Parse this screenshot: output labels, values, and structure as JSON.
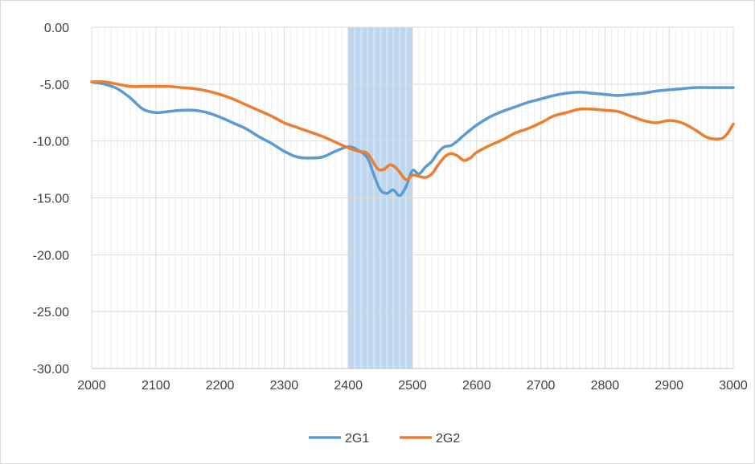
{
  "chart_data": {
    "type": "line",
    "title": "",
    "xlabel": "",
    "ylabel": "",
    "xlim": [
      2000,
      3000
    ],
    "ylim": [
      -30,
      0
    ],
    "x_ticks": [
      2000,
      2100,
      2200,
      2300,
      2400,
      2500,
      2600,
      2700,
      2800,
      2900,
      3000
    ],
    "x_tick_labels": [
      "2000",
      "2100",
      "2200",
      "2300",
      "2400",
      "2500",
      "2600",
      "2700",
      "2800",
      "2900",
      "3000"
    ],
    "y_ticks": [
      0,
      -5,
      -10,
      -15,
      -20,
      -25,
      -30
    ],
    "y_tick_labels": [
      "0.00",
      "-5.00",
      "-10.00",
      "-15.00",
      "-20.00",
      "-25.00",
      "-30.00"
    ],
    "grid": true,
    "legend_position": "bottom",
    "highlight_band": {
      "x_start": 2400,
      "x_end": 2500,
      "color": "#bdd7ee",
      "border": "#9dc3e6"
    },
    "series": [
      {
        "name": "2G1",
        "color": "#5b9bd5",
        "points": [
          [
            2000,
            -4.8
          ],
          [
            2020,
            -5.0
          ],
          [
            2040,
            -5.4
          ],
          [
            2060,
            -6.2
          ],
          [
            2080,
            -7.2
          ],
          [
            2100,
            -7.5
          ],
          [
            2120,
            -7.4
          ],
          [
            2140,
            -7.3
          ],
          [
            2160,
            -7.3
          ],
          [
            2180,
            -7.5
          ],
          [
            2200,
            -7.9
          ],
          [
            2220,
            -8.4
          ],
          [
            2240,
            -8.9
          ],
          [
            2260,
            -9.6
          ],
          [
            2280,
            -10.2
          ],
          [
            2300,
            -10.9
          ],
          [
            2320,
            -11.4
          ],
          [
            2340,
            -11.5
          ],
          [
            2360,
            -11.4
          ],
          [
            2380,
            -10.9
          ],
          [
            2400,
            -10.5
          ],
          [
            2415,
            -10.8
          ],
          [
            2430,
            -11.5
          ],
          [
            2440,
            -13.0
          ],
          [
            2450,
            -14.3
          ],
          [
            2460,
            -14.6
          ],
          [
            2470,
            -14.3
          ],
          [
            2480,
            -14.8
          ],
          [
            2490,
            -14.0
          ],
          [
            2500,
            -12.6
          ],
          [
            2510,
            -12.9
          ],
          [
            2520,
            -12.3
          ],
          [
            2530,
            -11.8
          ],
          [
            2540,
            -11.0
          ],
          [
            2550,
            -10.5
          ],
          [
            2560,
            -10.4
          ],
          [
            2570,
            -10.0
          ],
          [
            2580,
            -9.5
          ],
          [
            2600,
            -8.6
          ],
          [
            2620,
            -7.9
          ],
          [
            2640,
            -7.4
          ],
          [
            2660,
            -7.0
          ],
          [
            2680,
            -6.6
          ],
          [
            2700,
            -6.3
          ],
          [
            2720,
            -6.0
          ],
          [
            2740,
            -5.8
          ],
          [
            2760,
            -5.7
          ],
          [
            2780,
            -5.8
          ],
          [
            2800,
            -5.9
          ],
          [
            2820,
            -6.0
          ],
          [
            2840,
            -5.9
          ],
          [
            2860,
            -5.8
          ],
          [
            2880,
            -5.6
          ],
          [
            2900,
            -5.5
          ],
          [
            2920,
            -5.4
          ],
          [
            2940,
            -5.3
          ],
          [
            2960,
            -5.3
          ],
          [
            2980,
            -5.3
          ],
          [
            3000,
            -5.3
          ]
        ]
      },
      {
        "name": "2G2",
        "color": "#ed7d31",
        "points": [
          [
            2000,
            -4.8
          ],
          [
            2020,
            -4.8
          ],
          [
            2040,
            -5.0
          ],
          [
            2060,
            -5.2
          ],
          [
            2080,
            -5.2
          ],
          [
            2100,
            -5.2
          ],
          [
            2120,
            -5.2
          ],
          [
            2140,
            -5.3
          ],
          [
            2160,
            -5.4
          ],
          [
            2180,
            -5.6
          ],
          [
            2200,
            -5.9
          ],
          [
            2220,
            -6.3
          ],
          [
            2240,
            -6.8
          ],
          [
            2260,
            -7.3
          ],
          [
            2280,
            -7.8
          ],
          [
            2300,
            -8.4
          ],
          [
            2320,
            -8.8
          ],
          [
            2340,
            -9.2
          ],
          [
            2360,
            -9.6
          ],
          [
            2380,
            -10.1
          ],
          [
            2400,
            -10.6
          ],
          [
            2415,
            -10.9
          ],
          [
            2430,
            -11.1
          ],
          [
            2445,
            -12.4
          ],
          [
            2455,
            -12.5
          ],
          [
            2465,
            -12.1
          ],
          [
            2475,
            -12.4
          ],
          [
            2490,
            -13.4
          ],
          [
            2500,
            -13.0
          ],
          [
            2510,
            -13.1
          ],
          [
            2520,
            -13.2
          ],
          [
            2530,
            -12.9
          ],
          [
            2540,
            -12.1
          ],
          [
            2550,
            -11.4
          ],
          [
            2560,
            -11.1
          ],
          [
            2570,
            -11.3
          ],
          [
            2580,
            -11.7
          ],
          [
            2590,
            -11.5
          ],
          [
            2600,
            -11.0
          ],
          [
            2620,
            -10.4
          ],
          [
            2640,
            -9.9
          ],
          [
            2660,
            -9.3
          ],
          [
            2680,
            -8.9
          ],
          [
            2700,
            -8.4
          ],
          [
            2720,
            -7.8
          ],
          [
            2740,
            -7.5
          ],
          [
            2760,
            -7.2
          ],
          [
            2780,
            -7.2
          ],
          [
            2800,
            -7.3
          ],
          [
            2820,
            -7.4
          ],
          [
            2840,
            -7.8
          ],
          [
            2860,
            -8.2
          ],
          [
            2880,
            -8.4
          ],
          [
            2900,
            -8.2
          ],
          [
            2920,
            -8.4
          ],
          [
            2940,
            -9.0
          ],
          [
            2960,
            -9.7
          ],
          [
            2980,
            -9.8
          ],
          [
            2990,
            -9.4
          ],
          [
            3000,
            -8.5
          ]
        ]
      }
    ]
  }
}
